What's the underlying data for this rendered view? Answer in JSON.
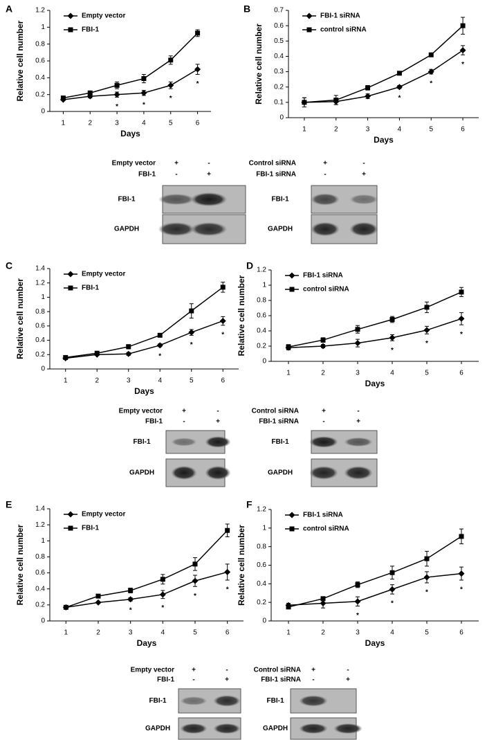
{
  "chart_data": [
    {
      "type": "line",
      "panel": "A",
      "xlabel": "Days",
      "ylabel": "Relative cell number",
      "x": [
        1,
        2,
        3,
        4,
        5,
        6
      ],
      "xlim": [
        0.5,
        6.5
      ],
      "xticks": [
        1,
        2,
        3,
        4,
        5,
        6
      ],
      "ylim": [
        0,
        1.2
      ],
      "yticks": [
        0,
        0.2,
        0.4,
        0.6,
        0.8,
        1,
        1.2
      ],
      "legend": "upper left",
      "grid": false,
      "series": [
        {
          "name": "Empty vector",
          "color": "#000000",
          "marker": "diamond",
          "values": [
            0.14,
            0.18,
            0.2,
            0.22,
            0.31,
            0.5
          ],
          "errors": [
            0.01,
            0.02,
            0.03,
            0.03,
            0.04,
            0.06
          ]
        },
        {
          "name": "FBI-1",
          "color": "#000000",
          "marker": "square",
          "values": [
            0.16,
            0.22,
            0.31,
            0.39,
            0.61,
            0.93
          ],
          "errors": [
            0.02,
            0.02,
            0.04,
            0.05,
            0.05,
            0.04
          ]
        }
      ],
      "annotations": [
        {
          "x": 3,
          "text": "*"
        },
        {
          "x": 4,
          "text": "*"
        },
        {
          "x": 5,
          "text": "*"
        },
        {
          "x": 6,
          "text": "*"
        }
      ]
    },
    {
      "type": "line",
      "panel": "B",
      "xlabel": "Days",
      "ylabel": "Relative cell number",
      "x": [
        1,
        2,
        3,
        4,
        5,
        6
      ],
      "xlim": [
        0.5,
        6.5
      ],
      "xticks": [
        1,
        2,
        3,
        4,
        5,
        6
      ],
      "ylim": [
        0,
        0.7
      ],
      "yticks": [
        0,
        0.1,
        0.2,
        0.3,
        0.4,
        0.5,
        0.6,
        0.7
      ],
      "legend": "upper left",
      "grid": false,
      "series": [
        {
          "name": "FBI-1 siRNA",
          "color": "#000000",
          "marker": "diamond",
          "values": [
            0.1,
            0.105,
            0.14,
            0.2,
            0.3,
            0.44
          ],
          "errors": [
            0.03,
            0.02,
            0.015,
            0.01,
            0.015,
            0.03
          ]
        },
        {
          "name": "control siRNA",
          "color": "#000000",
          "marker": "square",
          "values": [
            0.1,
            0.115,
            0.195,
            0.29,
            0.41,
            0.6
          ],
          "errors": [
            0.03,
            0.03,
            0.015,
            0.01,
            0.01,
            0.055
          ]
        }
      ],
      "annotations": [
        {
          "x": 4,
          "text": "*"
        },
        {
          "x": 5,
          "text": "*"
        },
        {
          "x": 6,
          "text": "*"
        }
      ]
    },
    {
      "type": "line",
      "panel": "C",
      "xlabel": "Days",
      "ylabel": "Relative cell number",
      "x": [
        1,
        2,
        3,
        4,
        5,
        6
      ],
      "xlim": [
        0.5,
        6.5
      ],
      "xticks": [
        1,
        2,
        3,
        4,
        5,
        6
      ],
      "ylim": [
        0,
        1.4
      ],
      "yticks": [
        0,
        0.2,
        0.4,
        0.6,
        0.8,
        1,
        1.2,
        1.4
      ],
      "legend": "upper left",
      "grid": false,
      "series": [
        {
          "name": "Empty vector",
          "color": "#000000",
          "marker": "diamond",
          "values": [
            0.15,
            0.2,
            0.21,
            0.33,
            0.51,
            0.67
          ],
          "errors": [
            0.01,
            0.01,
            0.02,
            0.02,
            0.04,
            0.06
          ]
        },
        {
          "name": "FBI-1",
          "color": "#000000",
          "marker": "square",
          "values": [
            0.16,
            0.22,
            0.31,
            0.47,
            0.81,
            1.14
          ],
          "errors": [
            0.01,
            0.02,
            0.03,
            0.02,
            0.1,
            0.07
          ]
        }
      ],
      "annotations": [
        {
          "x": 4,
          "text": "*"
        },
        {
          "x": 5,
          "text": "*"
        },
        {
          "x": 6,
          "text": "*"
        }
      ]
    },
    {
      "type": "line",
      "panel": "D",
      "xlabel": "Days",
      "ylabel": "Relative cell number",
      "x": [
        1,
        2,
        3,
        4,
        5,
        6
      ],
      "xlim": [
        0.5,
        6.5
      ],
      "xticks": [
        1,
        2,
        3,
        4,
        5,
        6
      ],
      "ylim": [
        0,
        1.2
      ],
      "yticks": [
        0,
        0.2,
        0.4,
        0.6,
        0.8,
        1,
        1.2
      ],
      "legend": "upper left",
      "grid": false,
      "series": [
        {
          "name": "FBI-1 siRNA",
          "color": "#000000",
          "marker": "diamond",
          "values": [
            0.18,
            0.2,
            0.24,
            0.31,
            0.41,
            0.56
          ],
          "errors": [
            0.03,
            0.02,
            0.05,
            0.04,
            0.05,
            0.08
          ]
        },
        {
          "name": "control siRNA",
          "color": "#000000",
          "marker": "square",
          "values": [
            0.19,
            0.28,
            0.42,
            0.55,
            0.71,
            0.91
          ],
          "errors": [
            0.03,
            0.03,
            0.05,
            0.04,
            0.07,
            0.06
          ]
        }
      ],
      "annotations": [
        {
          "x": 4,
          "text": "*"
        },
        {
          "x": 5,
          "text": "*"
        },
        {
          "x": 6,
          "text": "*"
        }
      ]
    },
    {
      "type": "line",
      "panel": "E",
      "xlabel": "Days",
      "ylabel": "Relative cell number",
      "x": [
        1,
        2,
        3,
        4,
        5,
        6
      ],
      "xlim": [
        0.5,
        6.5
      ],
      "xticks": [
        1,
        2,
        3,
        4,
        5,
        6
      ],
      "ylim": [
        0,
        1.4
      ],
      "yticks": [
        0,
        0.2,
        0.4,
        0.6,
        0.8,
        1,
        1.2,
        1.4
      ],
      "legend": "upper left",
      "grid": false,
      "series": [
        {
          "name": "Empty vector",
          "color": "#000000",
          "marker": "diamond",
          "values": [
            0.17,
            0.23,
            0.27,
            0.33,
            0.5,
            0.61
          ],
          "errors": [
            0.01,
            0.01,
            0.02,
            0.05,
            0.07,
            0.1
          ]
        },
        {
          "name": "FBI-1",
          "color": "#000000",
          "marker": "square",
          "values": [
            0.17,
            0.31,
            0.38,
            0.52,
            0.71,
            1.13
          ],
          "errors": [
            0.01,
            0.01,
            0.03,
            0.06,
            0.08,
            0.08
          ]
        }
      ],
      "annotations": [
        {
          "x": 3,
          "text": "*"
        },
        {
          "x": 4,
          "text": "*"
        },
        {
          "x": 5,
          "text": "*"
        },
        {
          "x": 6,
          "text": "*"
        }
      ]
    },
    {
      "type": "line",
      "panel": "F",
      "xlabel": "Days",
      "ylabel": "Relative cell number",
      "x": [
        1,
        2,
        3,
        4,
        5,
        6
      ],
      "xlim": [
        0.5,
        6.5
      ],
      "xticks": [
        1,
        2,
        3,
        4,
        5,
        6
      ],
      "ylim": [
        0,
        1.2
      ],
      "yticks": [
        0,
        0.2,
        0.4,
        0.6,
        0.8,
        1,
        1.2
      ],
      "legend": "upper left",
      "grid": false,
      "series": [
        {
          "name": "FBI-1 siRNA",
          "color": "#000000",
          "marker": "diamond",
          "values": [
            0.17,
            0.19,
            0.21,
            0.34,
            0.47,
            0.51
          ],
          "errors": [
            0.02,
            0.05,
            0.05,
            0.05,
            0.06,
            0.07
          ]
        },
        {
          "name": "control siRNA",
          "color": "#000000",
          "marker": "square",
          "values": [
            0.15,
            0.24,
            0.39,
            0.52,
            0.67,
            0.91
          ],
          "errors": [
            0.02,
            0.02,
            0.03,
            0.07,
            0.08,
            0.08
          ]
        }
      ],
      "annotations": [
        {
          "x": 3,
          "text": "*"
        },
        {
          "x": 4,
          "text": "*"
        },
        {
          "x": 5,
          "text": "*"
        },
        {
          "x": 6,
          "text": "*"
        }
      ]
    }
  ],
  "blots": [
    {
      "rows": [
        {
          "label": "Empty vector",
          "signs": [
            "+",
            "-"
          ]
        },
        {
          "label": "FBI-1",
          "signs": [
            "-",
            "+"
          ]
        }
      ],
      "bands": [
        "FBI-1",
        "GAPDH"
      ]
    },
    {
      "rows": [
        {
          "label": "Control siRNA",
          "signs": [
            "+",
            "-"
          ]
        },
        {
          "label": "FBI-1 siRNA",
          "signs": [
            "-",
            "+"
          ]
        }
      ],
      "bands": [
        "FBI-1",
        "GAPDH"
      ]
    },
    {
      "rows": [
        {
          "label": "Empty vector",
          "signs": [
            "+",
            "-"
          ]
        },
        {
          "label": "FBI-1",
          "signs": [
            "-",
            "+"
          ]
        }
      ],
      "bands": [
        "FBI-1",
        "GAPDH"
      ]
    },
    {
      "rows": [
        {
          "label": "Control siRNA",
          "signs": [
            "+",
            "-"
          ]
        },
        {
          "label": "FBI-1 siRNA",
          "signs": [
            "-",
            "+"
          ]
        }
      ],
      "bands": [
        "FBI-1",
        "GAPDH"
      ]
    },
    {
      "rows": [
        {
          "label": "Empty vector",
          "signs": [
            "+",
            "-"
          ]
        },
        {
          "label": "FBI-1",
          "signs": [
            "-",
            "+"
          ]
        }
      ],
      "bands": [
        "FBI-1",
        "GAPDH"
      ]
    },
    {
      "rows": [
        {
          "label": "Control siRNA",
          "signs": [
            "+",
            "-"
          ]
        },
        {
          "label": "FBI-1 siRNA",
          "signs": [
            "-",
            "+"
          ]
        }
      ],
      "bands": [
        "FBI-1",
        "GAPDH"
      ]
    }
  ]
}
